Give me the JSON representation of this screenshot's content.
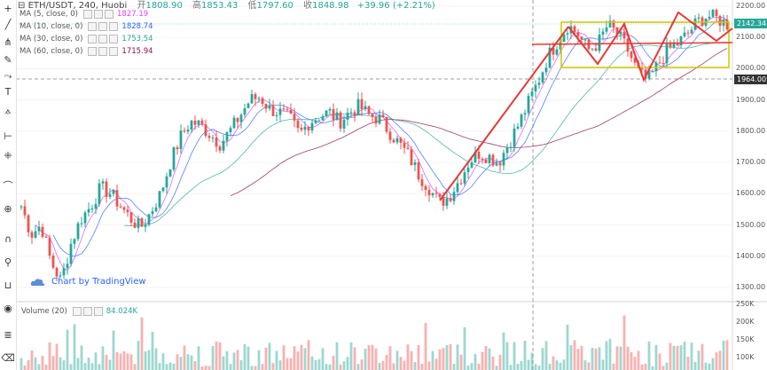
{
  "header": {
    "symbol": "ETH/USDT, 240, Huobi",
    "open_label": "开",
    "open": "1808.90",
    "high_label": "高",
    "high": "1853.43",
    "low_label": "低",
    "low": "1797.60",
    "close_label": "收",
    "close": "1848.98",
    "change": "+39.96 (+2.21%)"
  },
  "indicators": [
    {
      "name": "MA (5, close, 0)",
      "value": "1827.19",
      "color": "#e040fb"
    },
    {
      "name": "MA (10, close, 0)",
      "value": "1828.74",
      "color": "#2962ff"
    },
    {
      "name": "MA (30, close, 0)",
      "value": "1753.54",
      "color": "#26a69a"
    },
    {
      "name": "MA (60, close, 0)",
      "value": "1715.94",
      "color": "#880e4f"
    }
  ],
  "watermark": "Chart by TradingView",
  "volume": {
    "label": "Volume (20)",
    "value": "84.024K"
  },
  "price_tags": {
    "last": "2142.34",
    "crosshair": "1964.00"
  },
  "colors": {
    "up": "#26a69a",
    "down": "#ef5350",
    "box": "#d4c400",
    "pattern": "#e53935"
  },
  "chart_data": {
    "type": "candlestick",
    "y_ticks": [
      "2200.00",
      "2100.00",
      "2000.00",
      "1900.00",
      "1800.00",
      "1700.00",
      "1600.00",
      "1500.00",
      "1400.00",
      "1300.00"
    ],
    "volume_ticks": [
      "250K",
      "200K",
      "150K",
      "100K"
    ],
    "ylim": [
      1260,
      2220
    ],
    "close_path": [
      1560,
      1470,
      1500,
      1380,
      1320,
      1440,
      1520,
      1560,
      1620,
      1600,
      1560,
      1520,
      1490,
      1540,
      1600,
      1700,
      1780,
      1830,
      1820,
      1790,
      1760,
      1800,
      1850,
      1900,
      1910,
      1870,
      1860,
      1840,
      1790,
      1830,
      1850,
      1860,
      1830,
      1860,
      1880,
      1850,
      1840,
      1800,
      1760,
      1720,
      1660,
      1620,
      1570,
      1590,
      1640,
      1700,
      1730,
      1720,
      1700,
      1760,
      1820,
      1890,
      1960,
      2040,
      2090,
      2140,
      2110,
      2060,
      2080,
      2140,
      2110,
      2060,
      1990,
      1960,
      2010,
      2060,
      2080,
      2110,
      2150,
      2170,
      2160,
      2142
    ]
  }
}
